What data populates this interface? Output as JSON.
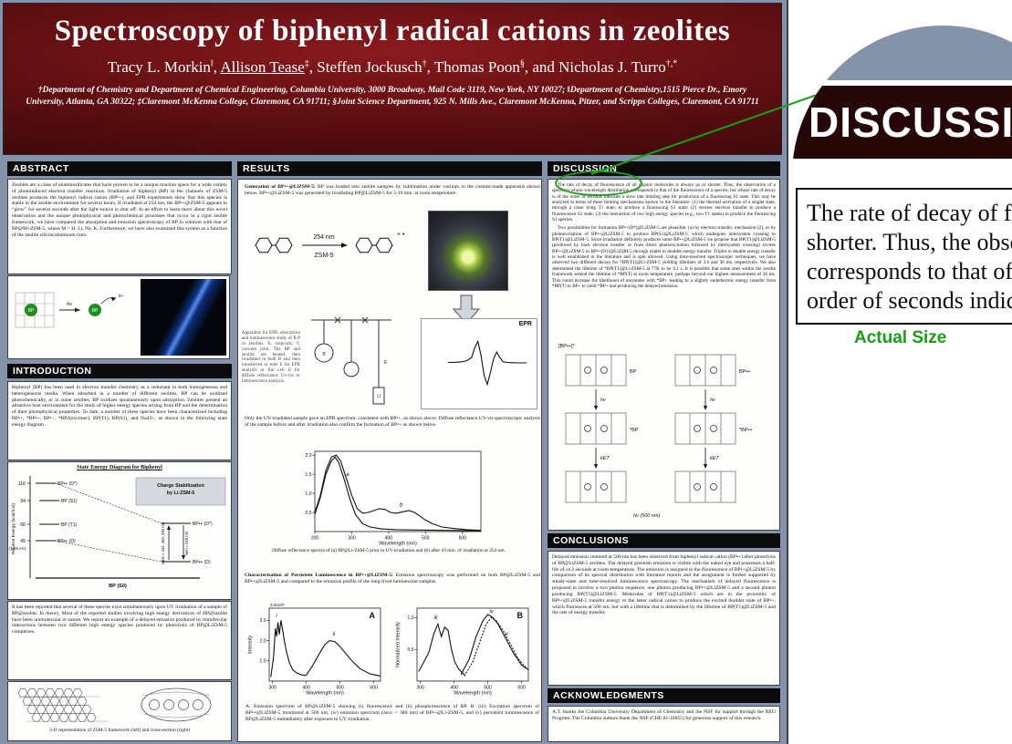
{
  "header": {
    "title": "Spectroscopy of biphenyl radical cations in zeolites",
    "authors": [
      {
        "name": "Tracy L. Morkin",
        "sup": "‖",
        "tail": ", "
      },
      {
        "name": "Allison Tease",
        "sup": "‡",
        "tail": ", "
      },
      {
        "name": "Steffen Jockusch",
        "sup": "†",
        "tail": ", "
      },
      {
        "name": "Thomas Poon",
        "sup": "§",
        "tail": ", "
      },
      {
        "name": "and Nicholas J. Turro",
        "sup": "†,*",
        "tail": ""
      }
    ],
    "affiliations": "†Department of Chemistry and Department of Chemical Engineering, Columbia University, 3000 Broadway, Mail Code 3119, New York, NY 10027; ‖Department of Chemistry,1515 Pierce Dr., Emory University, Atlanta, GA 30322; ‡Claremont McKenna College, Claremont, CA 91711; §Joint Science Department, 925 N. Mills Ave., Claremont McKenna, Pitzer, and Scripps Colleges, Claremont, CA 91711"
  },
  "sections": {
    "abstract": {
      "title": "ABSTRACT",
      "body": "Zeolites are a class of aluminosilicates that have proven to be a unique reaction space for a wide variety of photoinduced electron transfer reactions. Irradiation of biphenyl (BP) in the channels of ZSM-5 zeolites produces the biphenyl radical cation (BP•+), and EPR experiments show that this species is stable in the zeolite environment for several hours. If irradiated at 254 nm, the BP•+@ZSM-5 appears to “glow” for several seconds after the light source is shut off. In an effort to learn more about this novel observation and the unique photophysical and photochemical processes that occur in a rigid zeolite framework, we have compared the absorption and emission spectroscopy of BP in solution with that of BP@M+ZSM-5, where M = H, Li, Na, K. Furthermore, we have also examined this system as a function of the zeolite silicon/aluminum ratio."
    },
    "introduction": {
      "title": "INTRODUCTION",
      "body": "Biphenyl (BP) has been used in electron transfer chemistry as a reductant in both homogeneous and heterogeneous media. When adsorbed in a number of different zeolites, BP can be oxidized photochemically, or in some zeolites, BP oxidizes spontaneously upon adsorption. Zeolites present an attractive host environment for the study of higher energy species arising from BP and the determination of their photophysical properties. To date, a number of these species have been characterized including BP•+, *BP•+, BP•−, *BP2(excimer), BP(T1), BP(S1), and Na43+, as shown in the following state energy diagram.",
      "reported": "It has been reported that several of these species exist simultaneously upon UV irradiation of a sample of BP@zeolite. In theory, Most of the reported studies involving high energy derivatives of BP@zeolite have been unimolecular in nature. We report an example of a delayed emission produced by bimolecular interactions between two different high energy species produced by photolysis of BP@LiZSM-5 complexes.",
      "framework_caption": "3-D representation of ZSM-5 framework (left) and cross-section (right)"
    },
    "results": {
      "title": "RESULTS",
      "generation_lead": "Generation of BP•+@LiZSM-5:",
      "generation_rest": " BP was loaded into zeolite samples by sublimation under vacuum in the custom-made apparatus shown below. BP•+@LiZSM-5 was generated by irradiating BP@LiZSM-5 for 5-10 min. at room temperature.",
      "arrow_top": "254 nm",
      "arrow_bottom": "ZSM-5",
      "radical": "+ •",
      "apparatus": "Apparatus for EPR, absorption and luminescence study of B.P in zeolites. X, stopcock; V, vacuum joint. The BP and zeolite are heated, then irradiated in bulb B and then transferred to tube E for EPR analysis or flat cell U for diffuse reflectance Uv-vis or luminescence analysis.",
      "glass_letters": {
        "b": "B",
        "e": "E",
        "u": "U"
      },
      "epr_label": "EPR",
      "uv_text": "Only the UV-irradiated sample gave an EPR spectrum, consistent with BP•+, as shown above. Diffuse reflectance UV-vis spectroscopic analysis of the sample before and after irradiation also confirm the formation of BP•+ as shown below.",
      "uv_caption": "Diffuse reflectance spectra of (a) BP@Li-ZSM-5 prior to UV-irradiation and (b) after 10 min. of irradiation at 254 nm.",
      "char_lead": "Characterization of Persistent Luminescence in BP•+@LiZSM-5:",
      "char_rest": " Emission spectroscopy was performed on both BP@LiZSM-5 and BP•+@LiZSM-5 and compared to the emission profile of the long-lived luminescent samples.",
      "ab_caption": "A: Emission spectrum of BP@LiZSM-5 showing (i) fluorescence and (ii) phosphorescence of BP. B: (iii) Excitation spectrum of BP•+@LiZSM-5 monitored at 500 nm, (iv) emission spectrum (λexc = 380 nm) of BP•+@Li-ZSM-5, and (v) persistent luminescence of BP@LiZSM-5 immediately after exposure to UV irradiation."
    },
    "discussion": {
      "title": "DISCUSSION",
      "p1": "The rate of decay of fluorescence of all organic molecules is always μs or shorter.  Thus, the observation of a spectrum whose wavelength distribution corresponds to that of the fluorescence of a species, but whose rate of decay is of the order of seconds indicates a slow rate limiting step for production of a fluorescing S1 state. This may be analyzed in terms of three limiting mechanisms known in the literature: (1) the thermal activation of a singlet state, through a close lying T1 state, to produce a fluorescing S1 state; (2) reverse electron transfer to produce a fluorescence S1 state; (3) the interaction of two high energy species (e.g., two T1 states) to produce the fluorescing S1 species.",
      "p2": "Two possibilities for formation BP•+(D*)@LiZSM-5 are plausible: (a) by electron transfer, mechanism (2), or by photoexcitation of BP•+@LiZSM-5 to produce BP(S1)@LiZSM-5, which undergoes intersystem crossing to BP(T1)@LiZSM-5. Since irradiation definitely produces some BP•+@LiZSM-5 we propose that BP(T1)@LiZSM-5 (produced by back electron transfer or from direct photoexcitation followed by intersystem crossing) excites BP•+@LiZSM-5 to BP•+(D1)@LiZSM-5 through triplet to doublet energy transfer. Triplet to double energy transfer is well established in the literature and is spin allowed. Using time-resolved spectroscopic techniques, we have observed two different decays for *BP(T1)@Li-ZSM-5 yielding lifetimes of 3.6 and 36 ms, respectively. We also determined the lifetime of *BP(T1)@Li-ZSM-5 at 77K to be 4.1 s. It is possible that some sites within the zeolite framework extend the lifetime of *BP(T) at room temperature, perhaps beyond our highest measurement of 36 ms. This could increase the likelihood of encounter with *BP+ leading to a slightly endothermic energy transfer from *BP(T) to BP+ to yield *BP+ and producing the delayed emission."
    },
    "conclusions": {
      "title": "CONCLUSIONS",
      "body": "Delayed emission centered at 500 nm has been observed from biphenyl radical cation (BP•+) after photolysis of BP@LiZSM-5 zeolites. The delayed greenish emission is visible with the naked eye and possesses a half-life of ca 2 seconds at room temperature. The emission is assigned to the fluorescence of BP•+@LiZSM-5 by comparison of its spectral distribution with literature reports and the assignment is further supported by steady-state and time-resolved luminescence spectroscopy. The mechanism of delayed fluorescence is proposed to involve a two photon sequence, one photon producing BP•+@LiZSM-5 and a second photon producing BP(T1)@LiZSM-5. Molecules of BP(T1)@LiZSM-5 which are in the proximity of BP•+@LiZSM-5 transfer energy to the latter radical cation to produce the excited doublet state of BP•+, which fluoresces at 500 nm, but with a lifetime that is determined by the lifetime of BP(T1)@LiZSM-5 and the rate of energy transfer."
    },
    "acknowledgments": {
      "title": "ACKNOWLEDGMENTS",
      "body": "A.T. thanks the Columbia University Department of Chemistry and the NSF for support through the REU Program. The Columbia authors thank the NSF (CHE 01-10655) for generous support of this research."
    }
  },
  "scheme": {
    "bp": "BP",
    "hv": "hν",
    "e": "e−"
  },
  "energy_diagram": {
    "title": "State Energy Diagram for Biphenyl",
    "ylabel": "Relative Energy (kcal/mol)",
    "e1": "116",
    "e2": "94",
    "e3": "66",
    "e4": "45",
    "ev": "(1.96 eV)",
    "l1": "BP•+ (D*)",
    "l2": "BP (S1)",
    "l3": "BP (T1)",
    "l4": "BP•+ (D)",
    "l0": "BP (S0)",
    "stab1": "Charge Stabilization",
    "stab2": "by Li-ZSM-5",
    "r1": "BP•+ (D*)",
    "r2": "BP•+ (D)",
    "labs": "λabs = 434, 460, 490 nm",
    "lem": "λem ≈ 500 nm"
  },
  "mech": {
    "f1": "[BP•+]*",
    "f2": "hν",
    "f3": "kET",
    "f4": "BP",
    "f5": "*BP",
    "f6": "BP•+",
    "f7": "*BP•+",
    "f8": "hν (500 nm)"
  },
  "magnifier": {
    "header": "DISCUSSION",
    "l1": "The rate of decay of fluorescen",
    "l2": "shorter.  Thus, the observati",
    "l3": "corresponds to that of the",
    "l4": "order of seconds indicat",
    "label": "Actual Size"
  },
  "colors": {
    "accent_green": "#17a017",
    "poster_bg": "#8493a9",
    "header_maroon": "#641013",
    "bar_black": "#0b0b0b"
  },
  "chart_data": [
    {
      "type": "line",
      "title": "Diffuse reflectance UV-vis spectra of BP@Li-ZSM-5",
      "xlabel": "Wavelength (nm)",
      "ylabel": "",
      "ydec": 1,
      "xlim": [
        200,
        650
      ],
      "ylim": [
        0,
        2.1
      ],
      "xticks": [
        200,
        300,
        400,
        500,
        600
      ],
      "yticks": [
        0.5,
        1.0,
        1.5,
        2.0
      ],
      "series": [
        {
          "name": "a: BP@Li-ZSM-5 prior to UV-irradiation",
          "label": "a",
          "label_at": [
            285,
            1.45
          ],
          "x": [
            200,
            215,
            230,
            245,
            255,
            265,
            280,
            295,
            310,
            330,
            350,
            380,
            420,
            480,
            560,
            650
          ],
          "y": [
            0.45,
            0.9,
            1.5,
            1.85,
            1.95,
            1.8,
            1.35,
            0.85,
            0.45,
            0.2,
            0.12,
            0.07,
            0.05,
            0.04,
            0.03,
            0.02
          ]
        },
        {
          "name": "b: after 10 min irradiation at 254 nm",
          "label": "b",
          "label_at": [
            430,
            0.66
          ],
          "x": [
            200,
            215,
            230,
            245,
            258,
            270,
            285,
            300,
            315,
            330,
            345,
            360,
            375,
            390,
            405,
            420,
            440,
            455,
            470,
            485,
            500,
            520,
            545,
            575,
            610,
            650
          ],
          "y": [
            0.5,
            0.95,
            1.6,
            1.95,
            2.0,
            1.85,
            1.4,
            0.95,
            0.6,
            0.48,
            0.5,
            0.55,
            0.6,
            0.58,
            0.5,
            0.48,
            0.52,
            0.55,
            0.5,
            0.4,
            0.3,
            0.2,
            0.12,
            0.08,
            0.05,
            0.03
          ]
        }
      ]
    },
    {
      "type": "line",
      "title": "A: Emission spectrum of BP@LiZSM-5",
      "xlabel": "Wavelength (nm)",
      "ylabel": "Intensity",
      "ydec": 1,
      "corner": "A",
      "ynote": "3.5x10⁵",
      "xlim": [
        290,
        620
      ],
      "ylim": [
        0,
        3.6
      ],
      "xticks": [
        300,
        400,
        500,
        600
      ],
      "yticks": [
        1.0,
        2.0,
        3.0
      ],
      "series": [
        {
          "name": "(i) fluorescence of BP",
          "label": "i",
          "label_at": [
            310,
            3.15
          ],
          "x": [
            295,
            303,
            308,
            312,
            316,
            320,
            325,
            330,
            336,
            342,
            350,
            360,
            372,
            388,
            400
          ],
          "y": [
            0.2,
            1.2,
            2.6,
            2.2,
            2.9,
            2.3,
            3.0,
            2.5,
            1.9,
            1.4,
            0.9,
            0.55,
            0.4,
            0.3,
            0.28
          ]
        },
        {
          "name": "(ii) phosphorescence of BP",
          "label": "ii",
          "label_at": [
            478,
            2.25
          ],
          "x": [
            400,
            420,
            440,
            455,
            470,
            485,
            500,
            515,
            535,
            560,
            590,
            620
          ],
          "y": [
            0.3,
            0.8,
            1.4,
            1.8,
            2.0,
            1.95,
            1.7,
            1.4,
            1.0,
            0.6,
            0.35,
            0.25
          ]
        }
      ]
    },
    {
      "type": "line",
      "title": "B: Excitation, emission and persistent luminescence of BP•+@LiZSM-5",
      "xlabel": "Wavelength (nm)",
      "ylabel": "Normalized Intensity",
      "ydec": 1,
      "corner": "B",
      "xlim": [
        290,
        620
      ],
      "ylim": [
        0,
        1.15
      ],
      "xticks": [
        300,
        400,
        500,
        600
      ],
      "yticks": [
        0.5,
        1.0
      ],
      "series": [
        {
          "name": "(iii) excitation spectrum monitored at 500 nm",
          "label": "iii",
          "label_at": [
            340,
            0.98
          ],
          "x": [
            295,
            310,
            325,
            340,
            352,
            362,
            372,
            382,
            392,
            402,
            415,
            430
          ],
          "y": [
            0.15,
            0.3,
            0.45,
            0.75,
            0.9,
            0.7,
            0.85,
            0.8,
            0.5,
            0.3,
            0.18,
            0.1
          ]
        },
        {
          "name": "(iv) emission spectrum (λexc = 380 nm)",
          "label": "iv",
          "label_at": [
            505,
            1.07
          ],
          "x": [
            420,
            445,
            465,
            485,
            500,
            515,
            530,
            550,
            575,
            600,
            620
          ],
          "y": [
            0.1,
            0.35,
            0.7,
            0.95,
            1.05,
            1.0,
            0.9,
            0.7,
            0.45,
            0.25,
            0.18
          ]
        },
        {
          "name": "(v) persistent luminescence after UV exposure",
          "label": "v",
          "label_at": [
            552,
            0.72
          ],
          "dash": "2,1.5",
          "x": [
            430,
            455,
            475,
            495,
            510,
            525,
            545,
            565,
            590,
            615
          ],
          "y": [
            0.08,
            0.3,
            0.6,
            0.9,
            1.0,
            0.95,
            0.8,
            0.6,
            0.35,
            0.2
          ]
        }
      ]
    },
    {
      "type": "line",
      "title": "EPR spectrum of BP•+@LiZSM-5",
      "frame": false,
      "xlabel": "",
      "ylabel": "",
      "ydec": 0,
      "xlim": [
        0,
        100
      ],
      "ylim": [
        -1.1,
        1.1
      ],
      "xticks": [],
      "yticks": [],
      "series": [
        {
          "name": "EPR first-derivative signal",
          "x": [
            0,
            10,
            18,
            24,
            30,
            34,
            38,
            42,
            46,
            50,
            54,
            58,
            62,
            66,
            70,
            75,
            82,
            90,
            100
          ],
          "y": [
            0.02,
            0.03,
            0.05,
            0.1,
            0.25,
            0.7,
            1.0,
            0.35,
            -0.6,
            -1.0,
            -0.45,
            0.2,
            0.5,
            0.25,
            0.05,
            0.02,
            0.01,
            0.0,
            0.0
          ]
        }
      ]
    }
  ]
}
